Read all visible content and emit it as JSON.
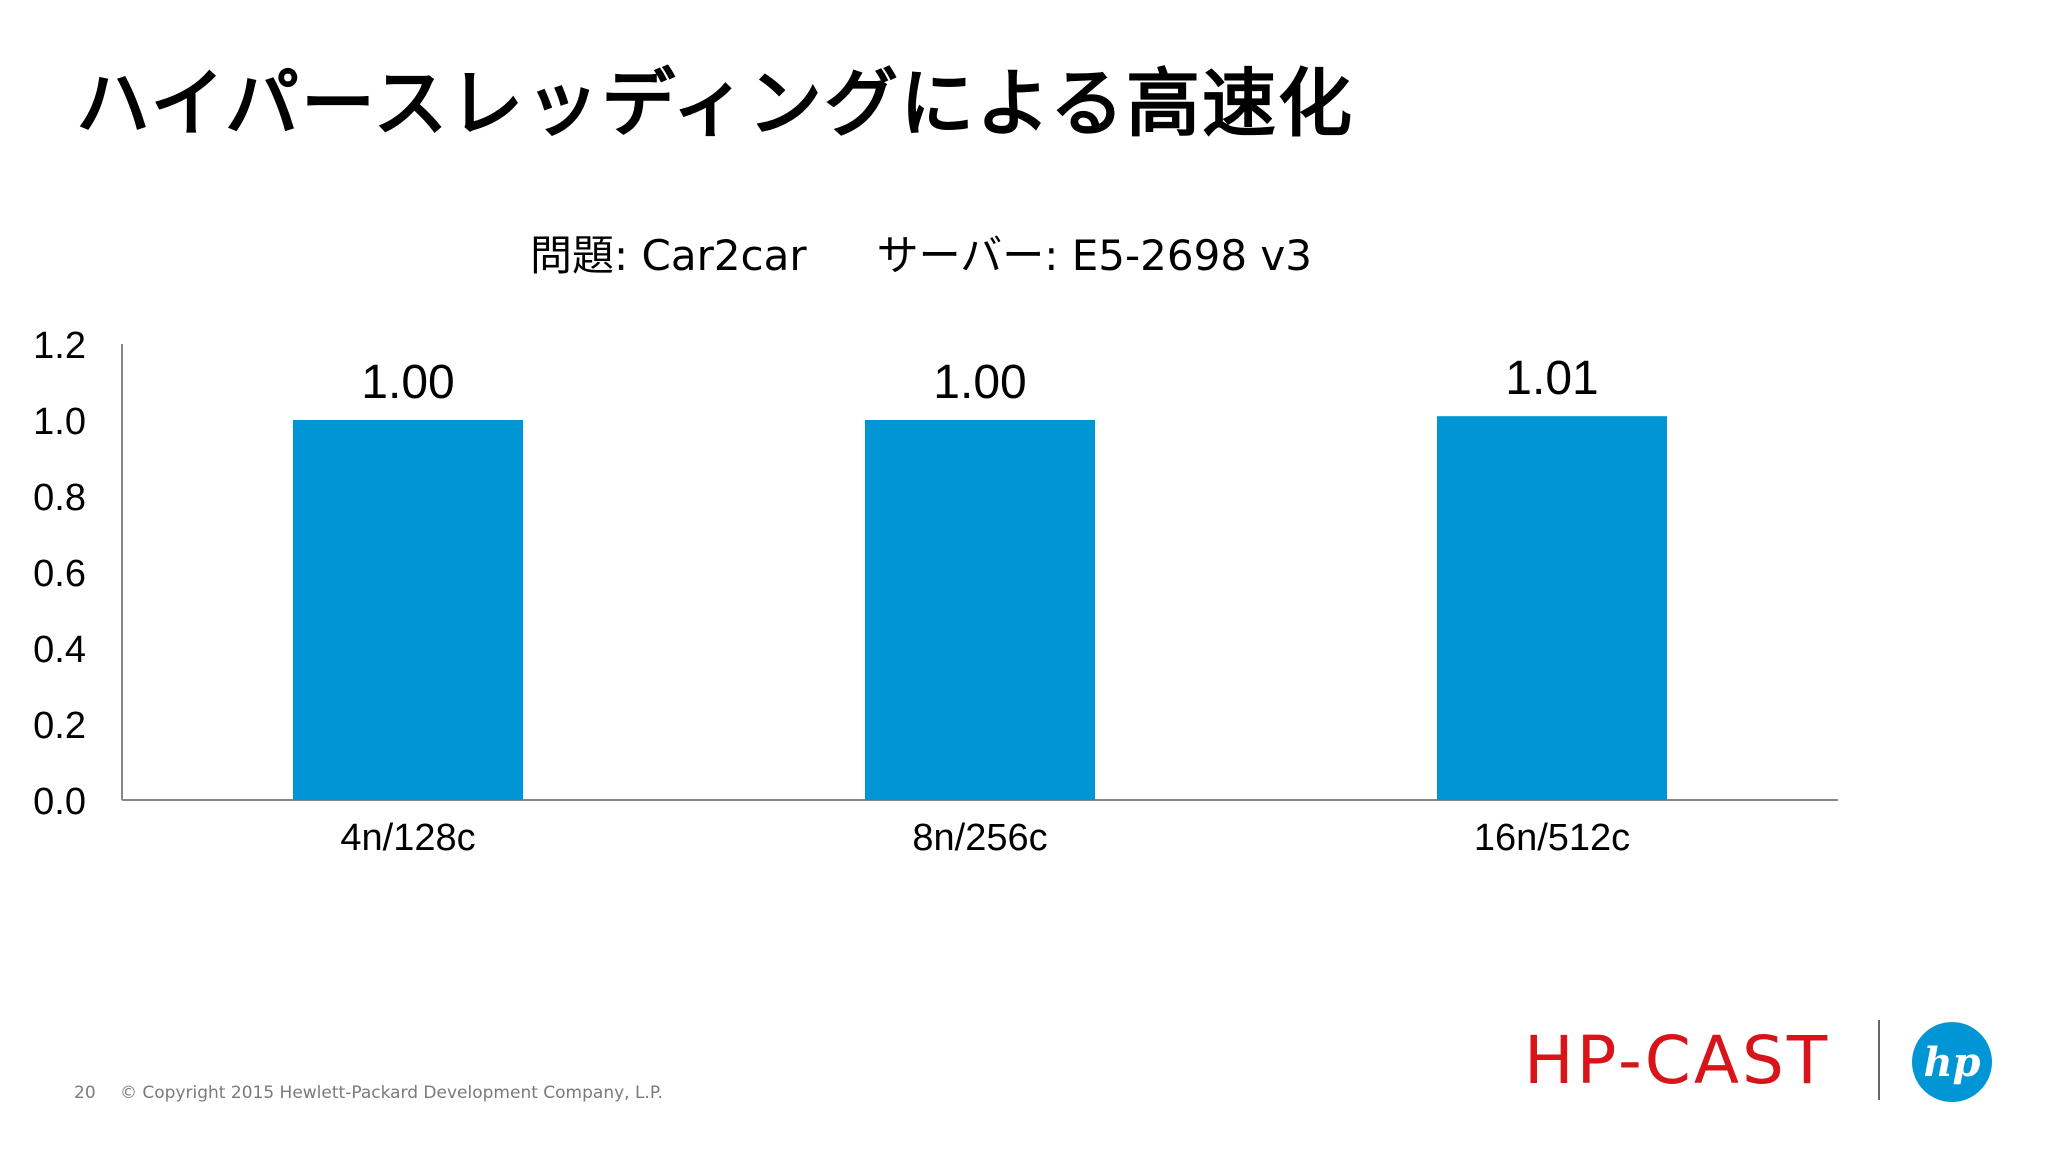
{
  "slide": {
    "title": "ハイパースレッディングによる高速化",
    "caption_problem": "問題: Car2car",
    "caption_server": "サーバー: E5-2698 v3",
    "page_number": "20",
    "copyright": "© Copyright 2015 Hewlett-Packard Development Company, L.P.",
    "event_logo_text": "HP-CAST",
    "brand_logo_text": "hp",
    "brand_color": "#0096d6",
    "event_logo_color": "#d7141a"
  },
  "chart_data": {
    "type": "bar",
    "title": "",
    "categories": [
      "4n/128c",
      "8n/256c",
      "16n/512c"
    ],
    "values": [
      1.0,
      1.0,
      1.01
    ],
    "data_labels": [
      "1.00",
      "1.00",
      "1.01"
    ],
    "ylim": [
      0,
      1.2
    ],
    "yticks": [
      "0.0",
      "0.2",
      "0.4",
      "0.6",
      "0.8",
      "1.0",
      "1.2"
    ],
    "xlabel": "",
    "ylabel": "",
    "grid": false,
    "bar_color": "#0096d6"
  }
}
